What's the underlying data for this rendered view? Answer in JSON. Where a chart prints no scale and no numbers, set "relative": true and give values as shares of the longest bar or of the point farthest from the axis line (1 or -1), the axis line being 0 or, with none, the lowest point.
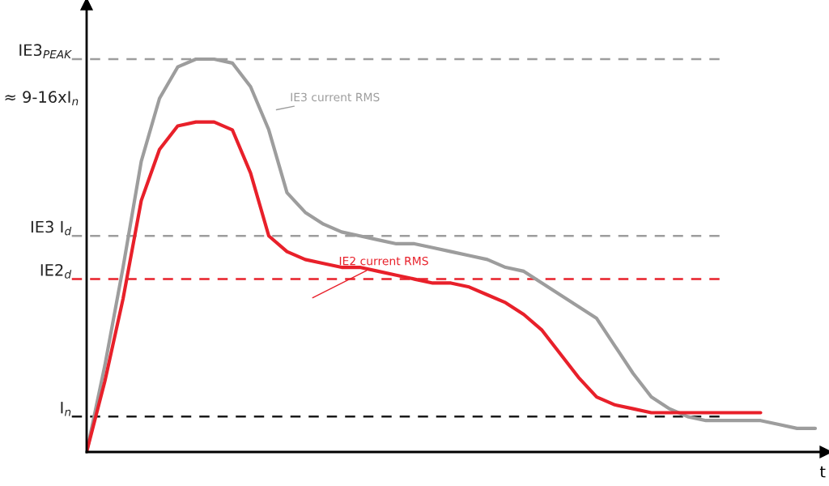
{
  "chart_data": {
    "type": "line",
    "relative": true,
    "xlabel": "t",
    "categories": [
      null,
      null,
      null,
      null,
      null,
      null,
      null,
      null,
      null,
      null,
      null,
      null,
      null,
      null,
      null,
      null,
      null,
      null,
      null,
      null,
      null,
      null,
      null,
      null,
      null,
      null,
      null,
      null,
      null,
      null,
      null,
      null,
      null,
      null,
      null,
      null,
      null,
      null,
      null,
      null,
      null
    ],
    "series": [
      {
        "name": "IE3 current RMS",
        "color": "#9d9d9d",
        "values": [
          0,
          0.22,
          0.47,
          0.74,
          0.9,
          0.98,
          1.0,
          1.0,
          0.99,
          0.93,
          0.82,
          0.66,
          0.61,
          0.58,
          0.56,
          0.55,
          0.54,
          0.53,
          0.53,
          0.52,
          0.51,
          0.5,
          0.49,
          0.47,
          0.46,
          0.43,
          0.4,
          0.37,
          0.34,
          0.27,
          0.2,
          0.14,
          0.11,
          0.09,
          0.08,
          0.08,
          0.08,
          0.08,
          0.07,
          0.06,
          0.06
        ]
      },
      {
        "name": "IE2 current RMS",
        "color": "#e8202a",
        "values": [
          0,
          0.18,
          0.39,
          0.64,
          0.77,
          0.83,
          0.84,
          0.84,
          0.82,
          0.71,
          0.55,
          0.51,
          0.49,
          0.48,
          0.47,
          0.47,
          0.46,
          0.45,
          0.44,
          0.43,
          0.43,
          0.42,
          0.4,
          0.38,
          0.35,
          0.31,
          0.25,
          0.19,
          0.14,
          0.12,
          0.11,
          0.1,
          0.1,
          0.1,
          0.1,
          0.1,
          0.1,
          0.1,
          null,
          null,
          null
        ]
      }
    ],
    "ref_lines": [
      {
        "axis": "y",
        "value": 1.0,
        "label": "IE3$_{PEAK}$",
        "color": "#9d9d9d",
        "line_style": "dashed"
      },
      {
        "axis": "y",
        "value": 0.55,
        "label": "IE3 I$_{d}$",
        "color": "#9d9d9d",
        "line_style": "dashed"
      },
      {
        "axis": "y",
        "value": 0.44,
        "label": "IE2$_{d}$",
        "color": "#e8202a",
        "line_style": "dashed"
      },
      {
        "axis": "y",
        "value": 0.09,
        "label": "I$_{n}$",
        "color": "#1a1a1a",
        "line_style": "dashed"
      }
    ],
    "annotations": [
      "≈ 9-16xI$_{n}$"
    ],
    "grid": false,
    "legend": false,
    "marker": "none",
    "line_style": "solid"
  }
}
